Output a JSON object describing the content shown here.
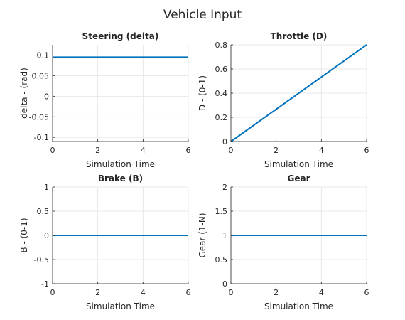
{
  "figure": {
    "title": "Vehicle Input"
  },
  "colors": {
    "series": "#0072BD",
    "grid": "#e3e3e3",
    "axis": "#262626"
  },
  "chart_data": [
    {
      "type": "line",
      "title": "Steering (delta)",
      "xlabel": "Simulation Time",
      "ylabel": "delta - (rad)",
      "xlim": [
        0,
        6
      ],
      "ylim": [
        -0.11,
        0.125
      ],
      "xticks": [
        0,
        2,
        4,
        6
      ],
      "xtick_labels": [
        "0",
        "2",
        "4",
        "6"
      ],
      "yticks": [
        -0.1,
        -0.05,
        0,
        0.05,
        0.1
      ],
      "ytick_labels": [
        "-0.1",
        "-0.05",
        "0",
        "0.05",
        "0.1"
      ],
      "grid": true,
      "series": [
        {
          "x": [
            0,
            6
          ],
          "y": [
            0.095,
            0.095
          ]
        }
      ]
    },
    {
      "type": "line",
      "title": "Throttle (D)",
      "xlabel": "Simulation Time",
      "ylabel": "D - (0-1)",
      "xlim": [
        0,
        6
      ],
      "ylim": [
        0,
        0.8
      ],
      "xticks": [
        0,
        2,
        4,
        6
      ],
      "xtick_labels": [
        "0",
        "2",
        "4",
        "6"
      ],
      "yticks": [
        0,
        0.2,
        0.4,
        0.6,
        0.8
      ],
      "ytick_labels": [
        "0",
        "0.2",
        "0.4",
        "0.6",
        "0.8"
      ],
      "grid": true,
      "series": [
        {
          "x": [
            0,
            6
          ],
          "y": [
            0,
            0.8
          ]
        }
      ]
    },
    {
      "type": "line",
      "title": "Brake (B)",
      "xlabel": "Simulation Time",
      "ylabel": "B - (0-1)",
      "xlim": [
        0,
        6
      ],
      "ylim": [
        -1,
        1
      ],
      "xticks": [
        0,
        2,
        4,
        6
      ],
      "xtick_labels": [
        "0",
        "2",
        "4",
        "6"
      ],
      "yticks": [
        -1,
        -0.5,
        0,
        0.5,
        1
      ],
      "ytick_labels": [
        "-1",
        "-0.5",
        "0",
        "0.5",
        "1"
      ],
      "grid": true,
      "series": [
        {
          "x": [
            0,
            6
          ],
          "y": [
            0,
            0
          ]
        }
      ]
    },
    {
      "type": "line",
      "title": "Gear",
      "xlabel": "Simulation Time",
      "ylabel": "Gear (1-N)",
      "xlim": [
        0,
        6
      ],
      "ylim": [
        0,
        2
      ],
      "xticks": [
        0,
        2,
        4,
        6
      ],
      "xtick_labels": [
        "0",
        "2",
        "4",
        "6"
      ],
      "yticks": [
        0,
        0.5,
        1,
        1.5,
        2
      ],
      "ytick_labels": [
        "0",
        "0.5",
        "1",
        "1.5",
        "2"
      ],
      "grid": true,
      "series": [
        {
          "x": [
            0,
            6
          ],
          "y": [
            1,
            1
          ]
        }
      ]
    }
  ]
}
